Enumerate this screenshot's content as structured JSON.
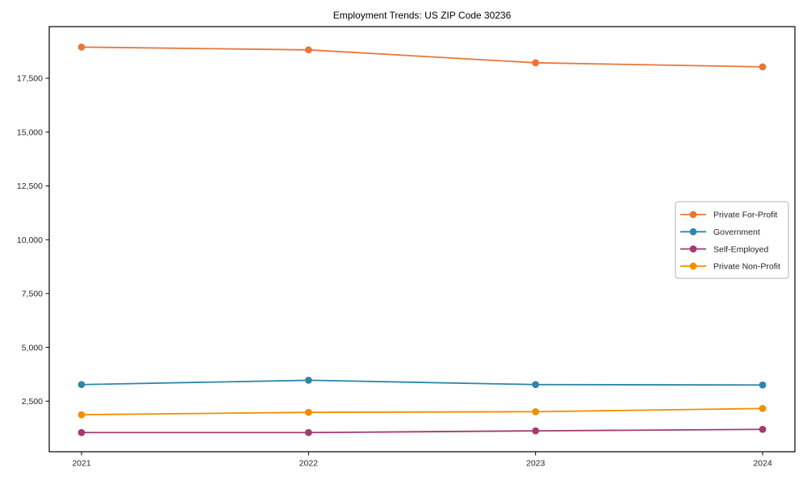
{
  "figure": {
    "title": "Employment Trends: US ZIP Code 30236"
  },
  "chart_data": {
    "type": "line",
    "title": "Employment Trends: US ZIP Code 30236",
    "xlabel": "",
    "ylabel": "",
    "x_categories": [
      "2021",
      "2022",
      "2023",
      "2024"
    ],
    "series": [
      {
        "name": "Private For-Profit",
        "color": "#E8763B",
        "values": [
          18950,
          18820,
          18220,
          18030
        ]
      },
      {
        "name": "Government",
        "color": "#2E86AB",
        "values": [
          3270,
          3470,
          3270,
          3250
        ]
      },
      {
        "name": "Self-Employed",
        "color": "#A23B72",
        "values": [
          1040,
          1040,
          1120,
          1190
        ]
      },
      {
        "name": "Private Non-Profit",
        "color": "#F18F01",
        "values": [
          1870,
          1980,
          2010,
          2160
        ]
      }
    ],
    "yticks": [
      2500,
      5000,
      7500,
      10000,
      12500,
      15000,
      17500
    ],
    "ytick_labels": [
      "2,500",
      "5,000",
      "7,500",
      "10,000",
      "12,500",
      "15,000",
      "17,500"
    ],
    "ylim": [
      150,
      19900
    ],
    "grid": false,
    "legend": {
      "position": "center right",
      "entries": [
        "Private For-Profit",
        "Government",
        "Self-Employed",
        "Private Non-Profit"
      ]
    },
    "axis_color": "#000000",
    "background": "#ffffff"
  }
}
